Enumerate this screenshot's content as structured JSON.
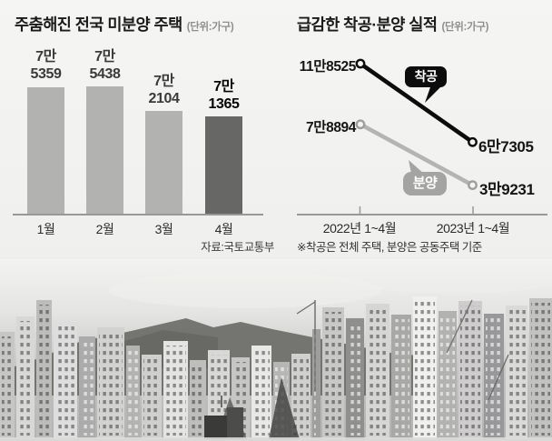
{
  "page": {
    "background": "#f4f4f2"
  },
  "chart_data": [
    {
      "type": "bar",
      "title": "주춤해진 전국 미분양 주택",
      "unit_label": "(단위:가구)",
      "categories": [
        "1월",
        "2월",
        "3월",
        "4월"
      ],
      "values": [
        75359,
        75438,
        72104,
        71365
      ],
      "value_labels": [
        [
          "7만",
          "5359"
        ],
        [
          "7만",
          "5438"
        ],
        [
          "7만",
          "2104"
        ],
        [
          "7만",
          "1365"
        ]
      ],
      "bar_colors": [
        "#b2b2b0",
        "#b2b2b0",
        "#b2b2b0",
        "#676765"
      ],
      "highlight_index": 3,
      "source": "자료:국토교통부",
      "layout_note": "truncated y-axis, no gridlines, no y-axis labels"
    },
    {
      "type": "line",
      "title": "급감한 착공·분양 실적",
      "unit_label": "(단위:가구)",
      "categories": [
        "2022년 1~4월",
        "2023년 1~4월"
      ],
      "series": [
        {
          "name": "착공",
          "values": [
            118525,
            67305
          ],
          "display": [
            "11만8525",
            "6만7305"
          ],
          "color": "#0c0c0c"
        },
        {
          "name": "분양",
          "values": [
            78894,
            39231
          ],
          "display": [
            "7만8894",
            "3만9231"
          ],
          "color": "#b4b4b2"
        }
      ],
      "footnote": "※착공은 전체 주택, 분양은 공동주택 기준",
      "legend_position": "speech-bubbles-on-lines"
    }
  ]
}
